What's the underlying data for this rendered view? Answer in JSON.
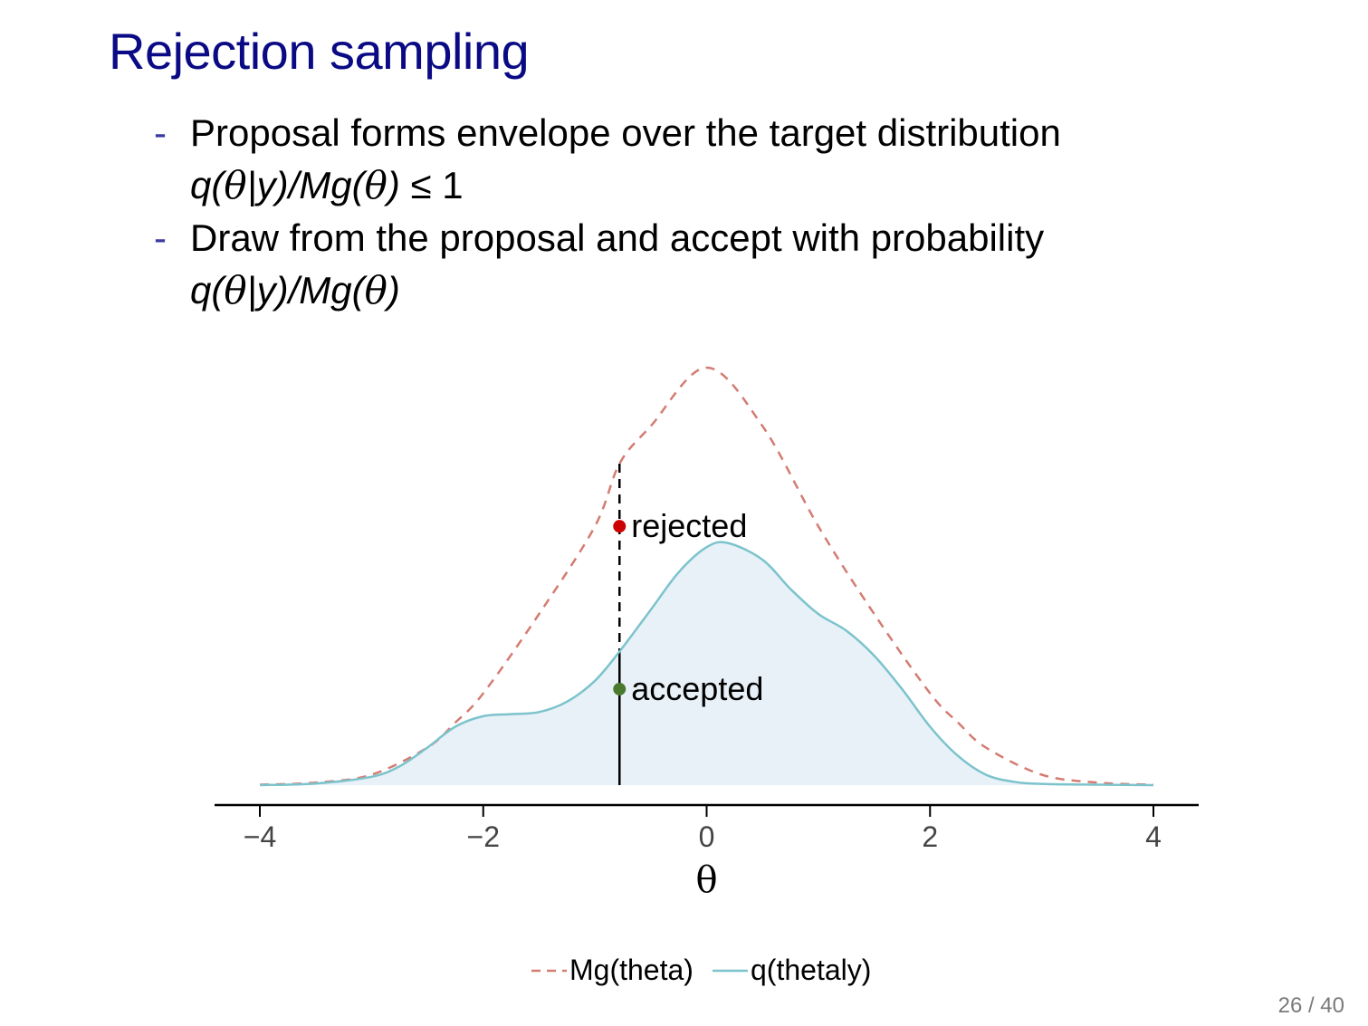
{
  "slide": {
    "title": "Rejection sampling",
    "bullets": [
      {
        "marker": "-",
        "text": "Proposal forms envelope over the target distribution",
        "formula": {
          "q": "q(",
          "theta": "θ",
          "bar_y": "|y)",
          "slash": "/Mg(",
          "theta2": "θ",
          "close": ")",
          "tail": " ≤ 1"
        }
      },
      {
        "marker": "-",
        "text": "Draw from the proposal and accept with probability",
        "formula": {
          "q": "q(",
          "theta": "θ",
          "bar_y": "|y)",
          "slash": "/Mg(",
          "theta2": "θ",
          "close": ")",
          "tail": ""
        }
      }
    ],
    "page": "26 / 40"
  },
  "colors": {
    "title": "#0a0a85",
    "envelope": "#d37c72",
    "target": "#7cc3cc",
    "target_fill": "#e8f1f8",
    "rejected": "#cc0000",
    "accepted": "#4a7a2e"
  },
  "chart_data": {
    "type": "line",
    "xlabel": "θ",
    "xlim": [
      -4,
      4
    ],
    "xticks": [
      -4,
      -2,
      0,
      2,
      4
    ],
    "xtick_labels": [
      "−4",
      "−2",
      "0",
      "2",
      "4"
    ],
    "ylim": [
      0,
      1
    ],
    "y_axis_shown": false,
    "legend_position": "bottom",
    "series": [
      {
        "name": "Mg(theta)",
        "style": "dashed",
        "x": [
          -4,
          -3.5,
          -3,
          -2.5,
          -2.25,
          -2,
          -1.5,
          -1,
          -0.78,
          -0.5,
          0,
          0.5,
          1,
          1.5,
          2,
          2.25,
          2.5,
          3,
          3.5,
          4
        ],
        "y": [
          0.001,
          0.006,
          0.025,
          0.09,
          0.15,
          0.22,
          0.41,
          0.62,
          0.77,
          0.86,
          1.0,
          0.86,
          0.62,
          0.41,
          0.22,
          0.15,
          0.09,
          0.025,
          0.006,
          0.001
        ]
      },
      {
        "name": "q(thetaly)",
        "style": "solid",
        "filled": true,
        "x": [
          -4,
          -3.5,
          -3,
          -2.75,
          -2.5,
          -2.25,
          -2,
          -1.75,
          -1.5,
          -1.25,
          -1,
          -0.78,
          -0.5,
          -0.25,
          0,
          0.19,
          0.5,
          0.75,
          1,
          1.25,
          1.5,
          1.75,
          2,
          2.25,
          2.5,
          2.75,
          3,
          3.5,
          4
        ],
        "y": [
          0.0,
          0.004,
          0.02,
          0.045,
          0.09,
          0.14,
          0.165,
          0.17,
          0.175,
          0.2,
          0.25,
          0.32,
          0.42,
          0.51,
          0.57,
          0.58,
          0.54,
          0.47,
          0.41,
          0.37,
          0.31,
          0.23,
          0.14,
          0.07,
          0.025,
          0.008,
          0.003,
          0.001,
          0.0
        ]
      }
    ],
    "annotations": [
      {
        "label": "rejected",
        "x": -0.78,
        "y": 0.62
      },
      {
        "label": "accepted",
        "x": -0.78,
        "y": 0.23
      }
    ],
    "sample_x": -0.78
  }
}
